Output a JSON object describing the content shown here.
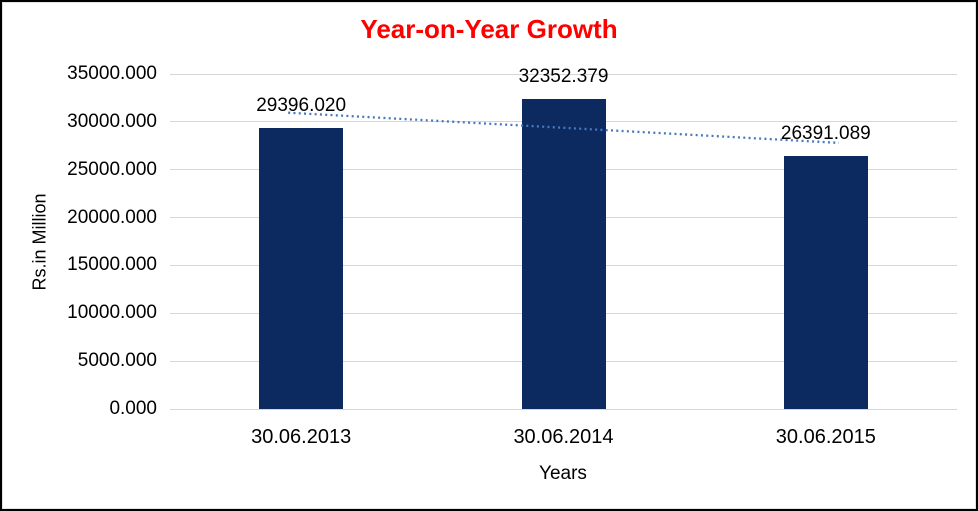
{
  "chart_data": {
    "type": "bar",
    "title": "Year-on-Year Growth",
    "title_color": "#ff0000",
    "xlabel": "Years",
    "ylabel": "Rs.in Million",
    "categories": [
      "30.06.2013",
      "30.06.2014",
      "30.06.2015"
    ],
    "values": [
      29396.02,
      32352.379,
      26391.089
    ],
    "value_labels": [
      "29396.020",
      "32352.379",
      "26391.089"
    ],
    "ylim": [
      0,
      35000
    ],
    "ytick_step": 5000,
    "ytick_labels": [
      "0.000",
      "5000.000",
      "10000.000",
      "15000.000",
      "20000.000",
      "25000.000",
      "30000.000",
      "35000.000"
    ],
    "grid": true,
    "legend": "none",
    "bar_color": "#0d2a60",
    "gridline_color": "#d6d6d6",
    "text_color": "#000000",
    "trendline": {
      "type": "linear",
      "style": "dotted",
      "color": "#4679bd"
    }
  }
}
